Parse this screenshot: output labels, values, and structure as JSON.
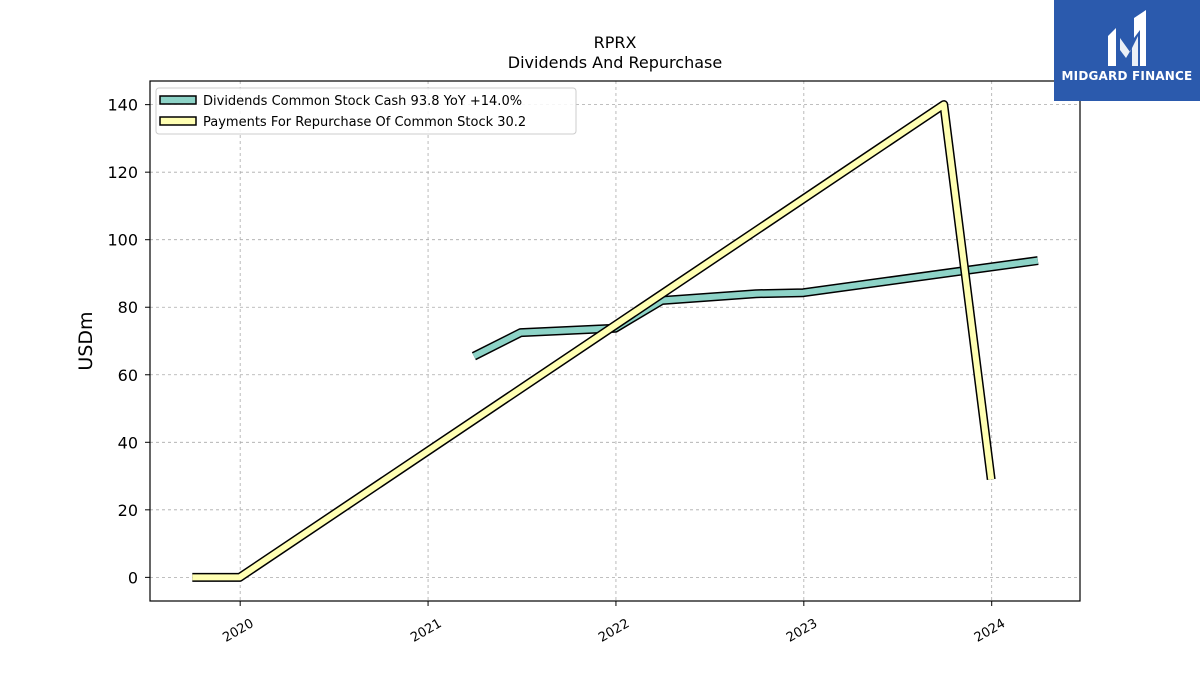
{
  "chart_data": {
    "type": "line",
    "title": "RPRX",
    "subtitle": "Dividends And Repurchase",
    "ylabel": "USDm",
    "xlabel": "",
    "ylim": [
      -7,
      147
    ],
    "xlim": [
      2019.52,
      2024.47
    ],
    "yticks": [
      0,
      20,
      40,
      60,
      80,
      100,
      120,
      140
    ],
    "xticks": [
      "2020",
      "2021",
      "2022",
      "2023",
      "2024"
    ],
    "grid": true,
    "legend_position": "top-left",
    "series": [
      {
        "name": "Dividends Common Stock Cash  93.8 YoY +14.0%",
        "color": "#8dd3c7",
        "x": [
          "2021-03-31",
          "2021-06-30",
          "2021-12-31",
          "2022-03-31",
          "2022-09-30",
          "2022-12-31",
          "2024-03-31"
        ],
        "y": [
          65.5,
          72.5,
          73.8,
          82.0,
          84.0,
          84.3,
          93.8
        ]
      },
      {
        "name": "Payments For Repurchase Of Common Stock  30.2",
        "color": "#ffffb3",
        "x": [
          "2019-09-30",
          "2019-12-31",
          "2023-09-30",
          "2023-12-31"
        ],
        "y": [
          0,
          0,
          140,
          29
        ]
      }
    ]
  },
  "logo": {
    "text": "MIDGARD FINANCE"
  }
}
